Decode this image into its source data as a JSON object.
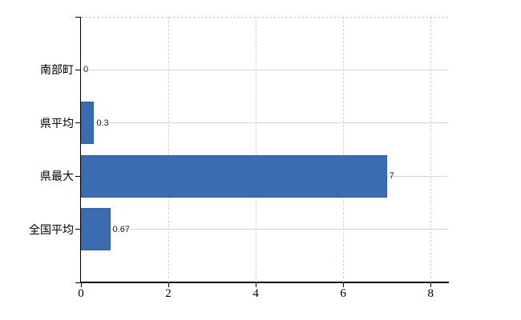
{
  "chart_data": {
    "type": "bar",
    "orientation": "horizontal",
    "title": "",
    "xlabel": "",
    "ylabel": "",
    "categories": [
      "南部町",
      "県平均",
      "県最大",
      "全国平均"
    ],
    "values": [
      0,
      0.3,
      7,
      0.67
    ],
    "value_labels": [
      "0",
      "0.3",
      "7",
      "0.67"
    ],
    "x_ticks": [
      0,
      2,
      4,
      6,
      8
    ],
    "x_tick_labels": [
      "0",
      "2",
      "4",
      "6",
      "8"
    ],
    "xlim": [
      0,
      8.4
    ],
    "grid": "on",
    "legend": "none"
  },
  "colors": {
    "background": "#ffffff",
    "bar_fill": "#3b6cb0",
    "bar_border": "#33619e",
    "axis": "#000000",
    "tick": "#000000",
    "gridline_horizontal": "#d2ddd2",
    "gridline_vertical": "#d8ccd3",
    "plot_border_top": "#cccccc",
    "category_label_text": "#000000",
    "value_label_text": "#1c1c1c",
    "x_tick_label_text": "#000000"
  }
}
